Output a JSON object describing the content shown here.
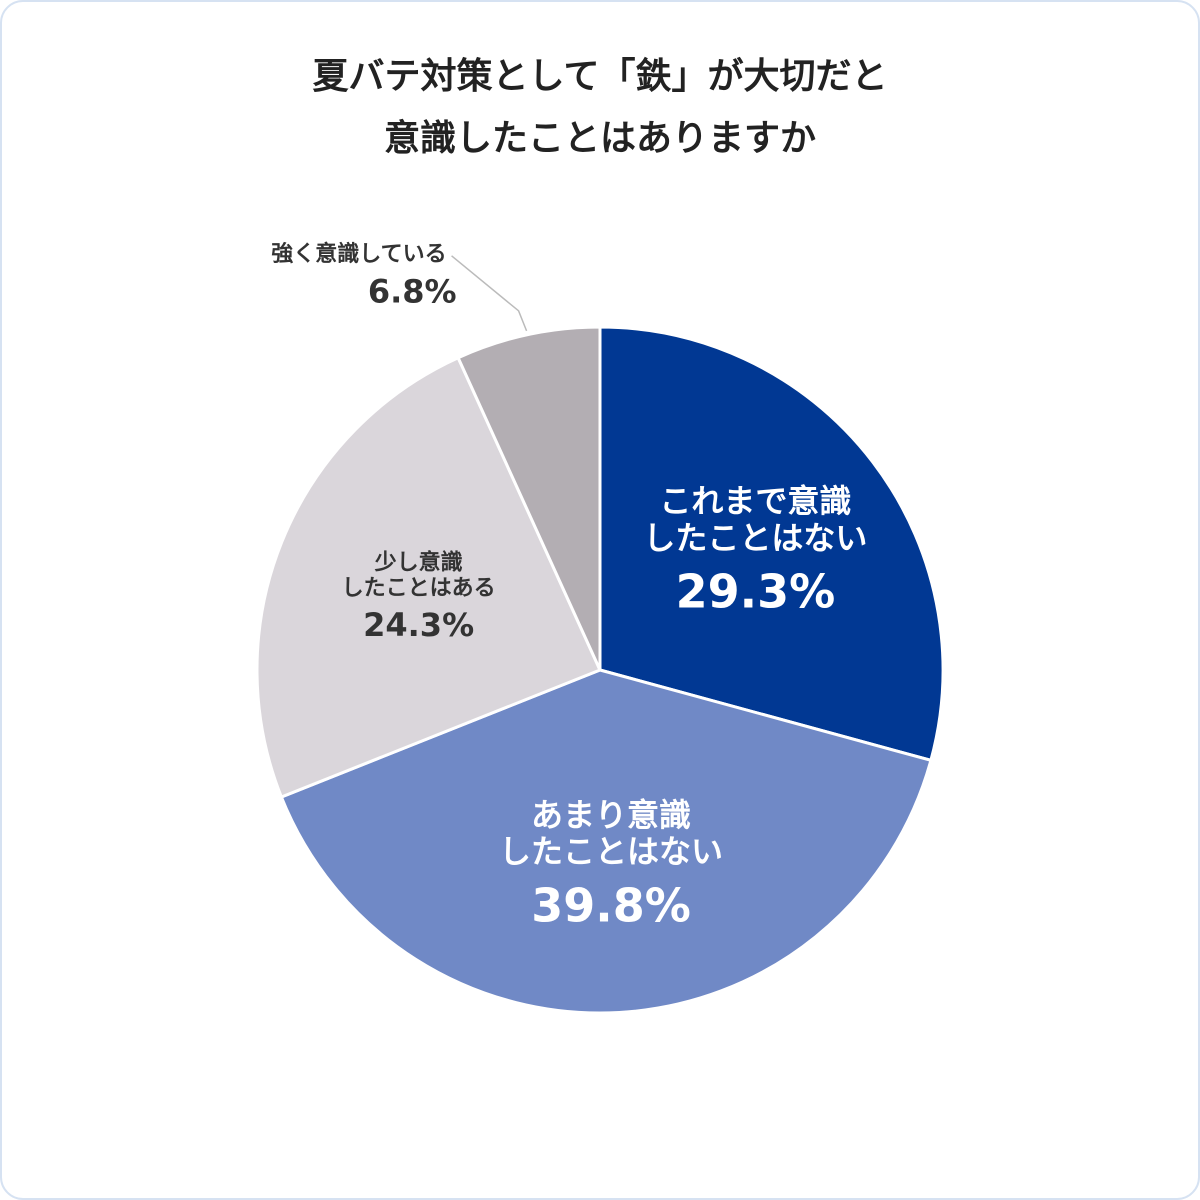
{
  "chart_data": {
    "type": "pie",
    "title": [
      "夏バテ対策として「鉄」が大切だと",
      "意識したことはありますか"
    ],
    "categories": [
      "これまで意識\nしたことはない",
      "あまり意識\nしたことはない",
      "少し意識\nしたことはある",
      "強く意識している"
    ],
    "values": [
      29.3,
      39.8,
      24.3,
      6.8
    ],
    "value_labels": [
      "29.3%",
      "39.8%",
      "24.3%",
      "6.8%"
    ],
    "colors": [
      "#013893",
      "#7089c6",
      "#dad6db",
      "#b3aeb3"
    ]
  }
}
